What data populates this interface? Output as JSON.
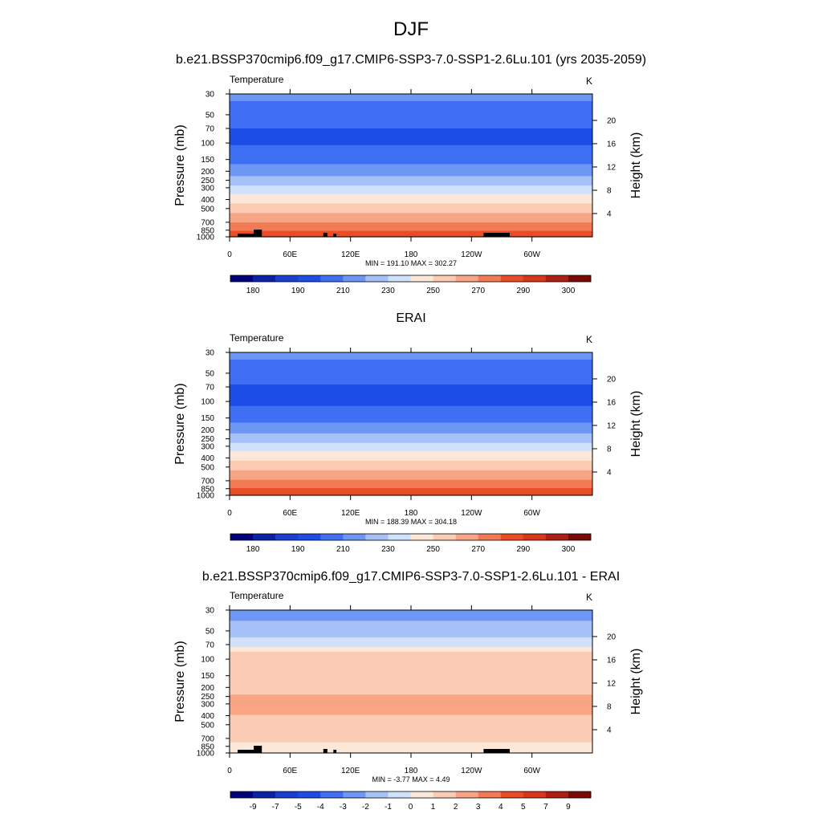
{
  "figure": {
    "title": "DJF",
    "case_title": "b.e21.BSSP370cmip6.f09_g17.CMIP6-SSP3-7.0-SSP1-2.6Lu.101 (yrs 2035-2059)"
  },
  "chart_data": [
    {
      "type": "heatmap",
      "title": "b.e21.BSSP370cmip6.f09_g17.CMIP6-SSP3-7.0-SSP1-2.6Lu.101 (yrs 2035-2059)",
      "left_label": "Temperature",
      "units": "K",
      "xlabel": "",
      "ylabel": "Pressure (mb)",
      "ylabel_right": "Height (km)",
      "x_ticks": [
        "0",
        "60E",
        "120E",
        "180",
        "120W",
        "60W"
      ],
      "xlim": [
        0,
        360
      ],
      "y_ticks": [
        30,
        50,
        70,
        100,
        150,
        200,
        250,
        300,
        400,
        500,
        700,
        850,
        1000
      ],
      "ylim": [
        30,
        1000
      ],
      "yscale": "log",
      "y_right_ticks": [
        4,
        8,
        12,
        16,
        20
      ],
      "stats_text": "MIN = 191.10  MAX = 302.27",
      "min": 191.1,
      "max": 302.27,
      "colorbar_labels": [
        "180",
        "190",
        "210",
        "230",
        "250",
        "270",
        "290",
        "300"
      ],
      "levels": [
        175,
        180,
        185,
        190,
        200,
        210,
        220,
        230,
        240,
        250,
        260,
        270,
        280,
        290,
        295,
        300,
        305
      ],
      "profile": [
        {
          "p": 30,
          "v": 212
        },
        {
          "p": 50,
          "v": 206
        },
        {
          "p": 70,
          "v": 200
        },
        {
          "p": 100,
          "v": 199
        },
        {
          "p": 150,
          "v": 206
        },
        {
          "p": 200,
          "v": 215
        },
        {
          "p": 250,
          "v": 224
        },
        {
          "p": 300,
          "v": 233
        },
        {
          "p": 400,
          "v": 246
        },
        {
          "p": 500,
          "v": 256
        },
        {
          "p": 700,
          "v": 270
        },
        {
          "p": 850,
          "v": 279
        },
        {
          "p": 1000,
          "v": 286
        }
      ],
      "mask_note": "black blocks near surface mark topography"
    },
    {
      "type": "heatmap",
      "title": "ERAI",
      "left_label": "Temperature",
      "units": "K",
      "xlabel": "",
      "ylabel": "Pressure (mb)",
      "ylabel_right": "Height (km)",
      "x_ticks": [
        "0",
        "60E",
        "120E",
        "180",
        "120W",
        "60W"
      ],
      "xlim": [
        0,
        360
      ],
      "y_ticks": [
        30,
        50,
        70,
        100,
        150,
        200,
        250,
        300,
        400,
        500,
        700,
        850,
        1000
      ],
      "ylim": [
        30,
        1000
      ],
      "yscale": "log",
      "y_right_ticks": [
        4,
        8,
        12,
        16,
        20
      ],
      "stats_text": "MIN = 188.39  MAX = 304.18",
      "min": 188.39,
      "max": 304.18,
      "colorbar_labels": [
        "180",
        "190",
        "210",
        "230",
        "250",
        "270",
        "290",
        "300"
      ],
      "levels": [
        175,
        180,
        185,
        190,
        200,
        210,
        220,
        230,
        240,
        250,
        260,
        270,
        280,
        290,
        295,
        300,
        305
      ],
      "profile": [
        {
          "p": 30,
          "v": 212
        },
        {
          "p": 50,
          "v": 206
        },
        {
          "p": 70,
          "v": 199
        },
        {
          "p": 100,
          "v": 198
        },
        {
          "p": 150,
          "v": 206
        },
        {
          "p": 200,
          "v": 216
        },
        {
          "p": 250,
          "v": 225
        },
        {
          "p": 300,
          "v": 234
        },
        {
          "p": 400,
          "v": 247
        },
        {
          "p": 500,
          "v": 257
        },
        {
          "p": 700,
          "v": 271
        },
        {
          "p": 850,
          "v": 280
        },
        {
          "p": 1000,
          "v": 287
        }
      ]
    },
    {
      "type": "heatmap",
      "title": "b.e21.BSSP370cmip6.f09_g17.CMIP6-SSP3-7.0-SSP1-2.6Lu.101 - ERAI",
      "left_label": "Temperature",
      "units": "K",
      "xlabel": "",
      "ylabel": "Pressure (mb)",
      "ylabel_right": "Height (km)",
      "x_ticks": [
        "0",
        "60E",
        "120E",
        "180",
        "120W",
        "60W"
      ],
      "xlim": [
        0,
        360
      ],
      "y_ticks": [
        30,
        50,
        70,
        100,
        150,
        200,
        250,
        300,
        400,
        500,
        700,
        850,
        1000
      ],
      "ylim": [
        30,
        1000
      ],
      "yscale": "log",
      "y_right_ticks": [
        4,
        8,
        12,
        16,
        20
      ],
      "stats_text": "MIN =  -3.77  MAX =   4.49",
      "min": -3.77,
      "max": 4.49,
      "colorbar_labels": [
        "-9",
        "-7",
        "-5",
        "-4",
        "-3",
        "-2",
        "-1",
        "0",
        "1",
        "2",
        "3",
        "4",
        "5",
        "7",
        "9"
      ],
      "levels": [
        -11,
        -9,
        -7,
        -5,
        -4,
        -3,
        -2,
        -1,
        0,
        1,
        2,
        3,
        4,
        5,
        7,
        9,
        11
      ],
      "profile": [
        {
          "p": 30,
          "v": -2.5
        },
        {
          "p": 50,
          "v": -1.5
        },
        {
          "p": 70,
          "v": -0.5
        },
        {
          "p": 90,
          "v": 1.5
        },
        {
          "p": 150,
          "v": 1.6
        },
        {
          "p": 300,
          "v": 2.2
        },
        {
          "p": 500,
          "v": 1.8
        },
        {
          "p": 700,
          "v": 1.4
        },
        {
          "p": 850,
          "v": 0.6
        },
        {
          "p": 1000,
          "v": 0.5
        }
      ],
      "mask_note": "black blocks near surface mark topography"
    }
  ],
  "colors": {
    "colormap": [
      "#00007a",
      "#0a22a8",
      "#1a3fd0",
      "#1d4de6",
      "#3f6ff2",
      "#6e96f5",
      "#a6c1f8",
      "#d0e1fb",
      "#fce8d8",
      "#fbcbb3",
      "#f8a585",
      "#f27b56",
      "#ea4d26",
      "#d9361a",
      "#ad1f12",
      "#7a0a06"
    ]
  }
}
